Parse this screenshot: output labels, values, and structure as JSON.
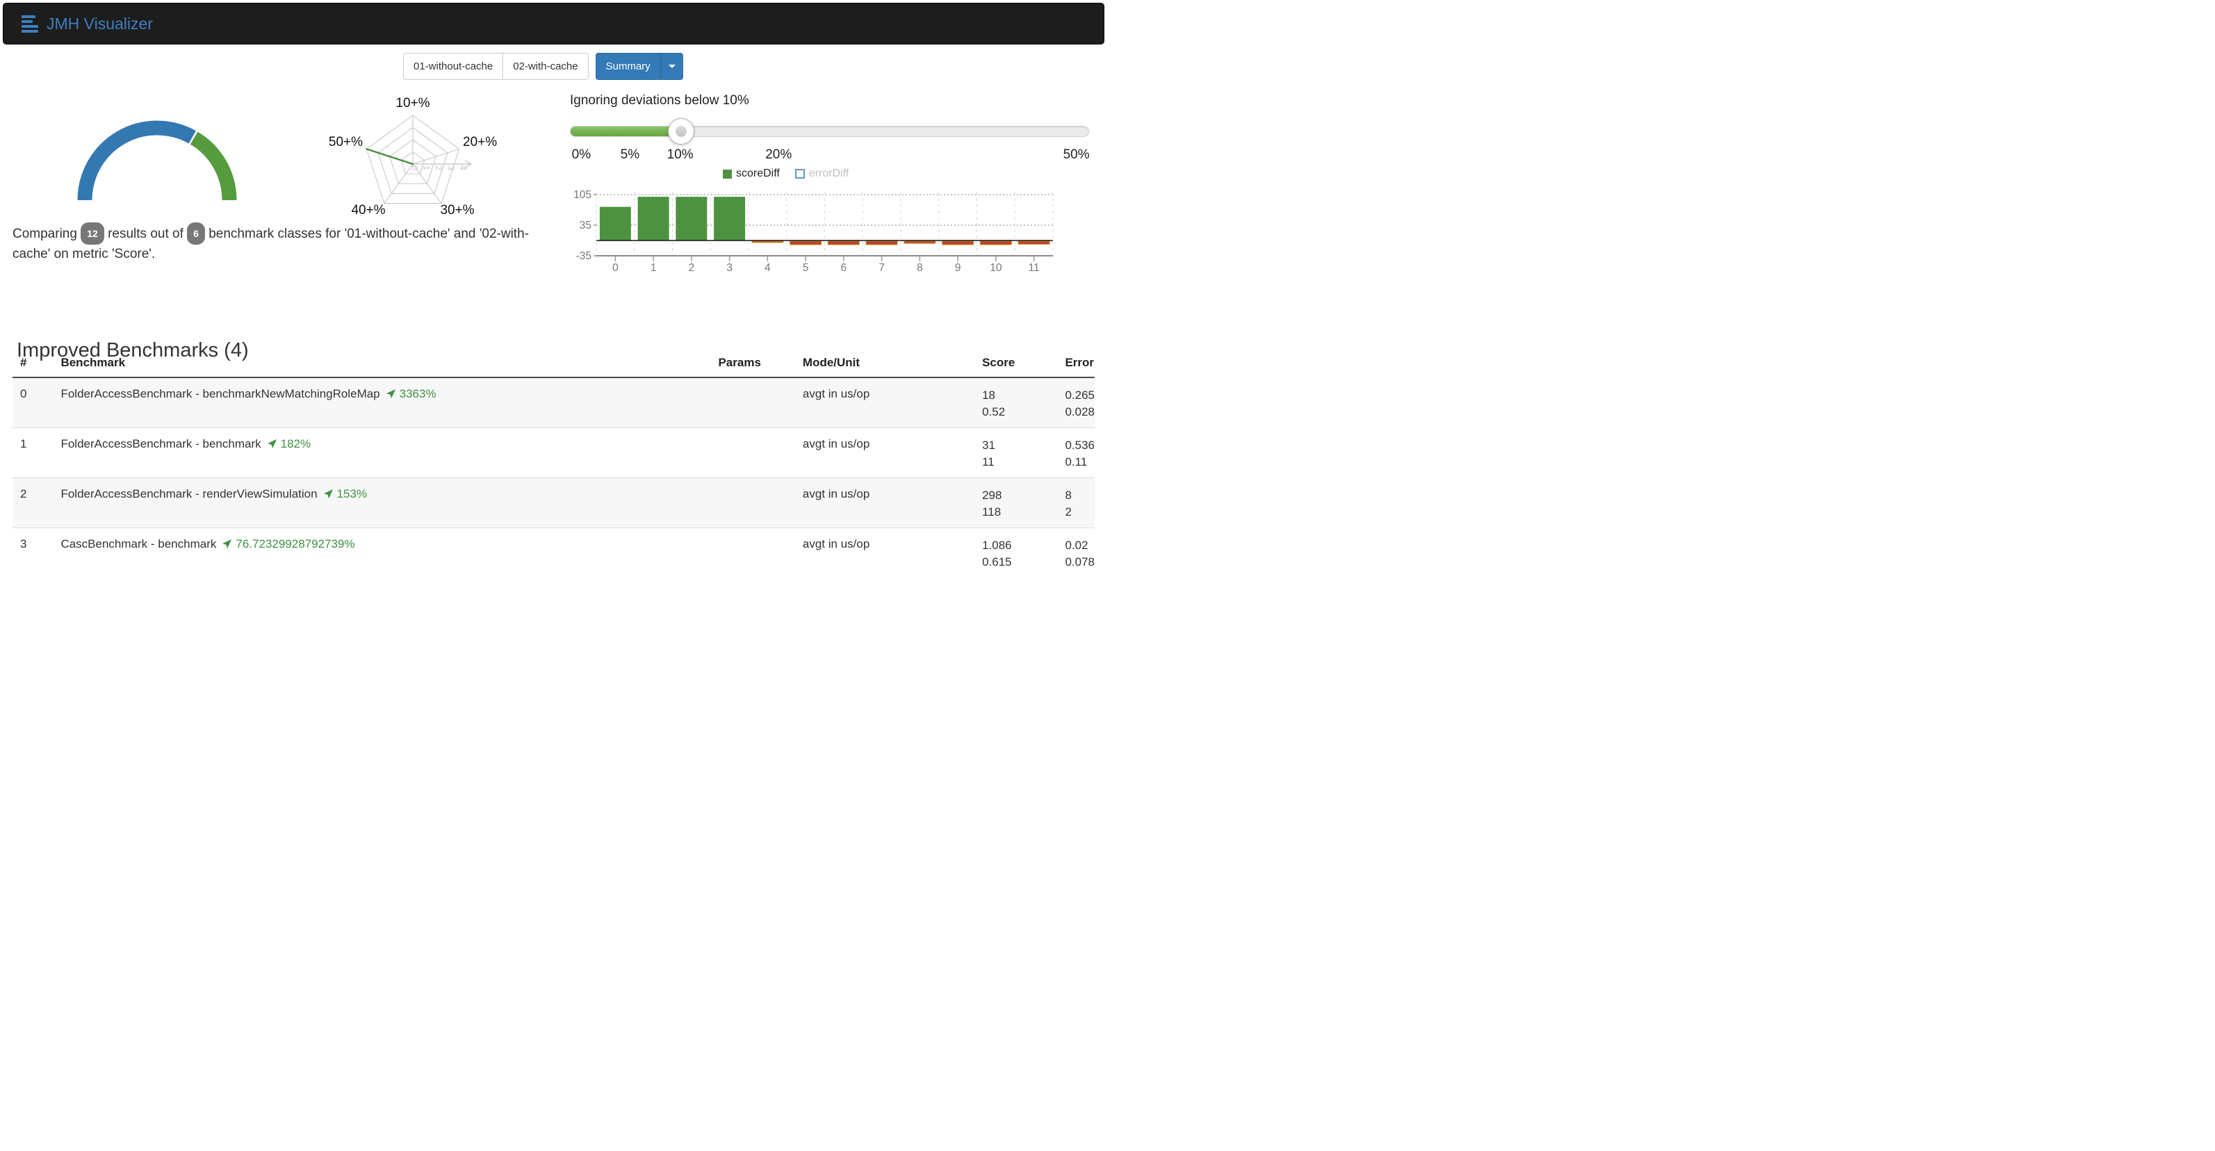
{
  "navbar": {
    "brand": "JMH Visualizer"
  },
  "toolbar": {
    "runs": [
      "01-without-cache",
      "02-with-cache"
    ],
    "view_button": "Summary"
  },
  "gauge": {
    "segments": [
      {
        "name": "other-results",
        "color": "#3478b2",
        "fraction": 0.6667
      },
      {
        "name": "improved-results",
        "color": "#569b3e",
        "fraction": 0.3333
      }
    ]
  },
  "caption": {
    "part1": "Comparing",
    "results_count": "12",
    "part2": "results out of",
    "classes_count": "6",
    "part3": "benchmark classes for '01-without-cache' and '02-with-cache' on metric 'Score'."
  },
  "radar": {
    "axes": [
      "10+%",
      "20+%",
      "30+%",
      "40+%",
      "50+%"
    ],
    "ticks": [
      "0",
      "1",
      "2",
      "3",
      "4"
    ],
    "values": [
      0,
      0,
      0,
      0,
      4
    ],
    "max": 4,
    "grid_color": "#cccccc",
    "line_color": "#4a8c3f"
  },
  "slider": {
    "title": "Ignoring deviations below 10%",
    "value_pos": 0.213,
    "fill_color": "#7ab356",
    "ticks": [
      {
        "label": "0%",
        "pos": 0.022
      },
      {
        "label": "5%",
        "pos": 0.116
      },
      {
        "label": "10%",
        "pos": 0.213
      },
      {
        "label": "20%",
        "pos": 0.403
      },
      {
        "label": "50%",
        "pos": 0.978
      }
    ]
  },
  "chart_data": {
    "type": "bar",
    "title": "",
    "categories": [
      "0",
      "1",
      "2",
      "3",
      "4",
      "5",
      "6",
      "7",
      "8",
      "9",
      "10",
      "11"
    ],
    "series": [
      {
        "name": "scoreDiff",
        "enabled": true,
        "color": "#4d9240",
        "negative_color": "#b5432e",
        "negative_edge": "#e08b1e",
        "values": [
          77,
          100,
          100,
          100,
          -3,
          -8,
          -8,
          -8,
          -5,
          -8,
          -8,
          -7
        ]
      },
      {
        "name": "errorDiff",
        "enabled": false,
        "color": "#5b9ad0",
        "values": []
      }
    ],
    "yticks": [
      105,
      35,
      -35
    ],
    "ylim": [
      -45,
      115
    ],
    "grid": true,
    "legend_position": "top"
  },
  "table": {
    "title": "Improved Benchmarks (4)",
    "columns": [
      "#",
      "Benchmark",
      "Params",
      "Mode/Unit",
      "Score",
      "Error"
    ],
    "rows": [
      {
        "index": "0",
        "benchmark": "FolderAccessBenchmark - benchmarkNewMatchingRoleMap",
        "diff": "3363%",
        "params": "",
        "mode": "avgt in us/op",
        "score": [
          "18",
          "0.52"
        ],
        "error": [
          "0.265",
          "0.028"
        ]
      },
      {
        "index": "1",
        "benchmark": "FolderAccessBenchmark - benchmark",
        "diff": "182%",
        "params": "",
        "mode": "avgt in us/op",
        "score": [
          "31",
          "11"
        ],
        "error": [
          "0.536",
          "0.11"
        ]
      },
      {
        "index": "2",
        "benchmark": "FolderAccessBenchmark - renderViewSimulation",
        "diff": "153%",
        "params": "",
        "mode": "avgt in us/op",
        "score": [
          "298",
          "118"
        ],
        "error": [
          "8",
          "2"
        ]
      },
      {
        "index": "3",
        "benchmark": "CascBenchmark - benchmark",
        "diff": "76.72329928792739%",
        "params": "",
        "mode": "avgt in us/op",
        "score": [
          "1.086",
          "0.615"
        ],
        "error": [
          "0.02",
          "0.078"
        ]
      }
    ]
  },
  "colors": {
    "brand_blue": "#3e7fc1",
    "primary_button": "#337ab7",
    "improve_green": "#3f9142",
    "badge_gray": "#777777"
  }
}
